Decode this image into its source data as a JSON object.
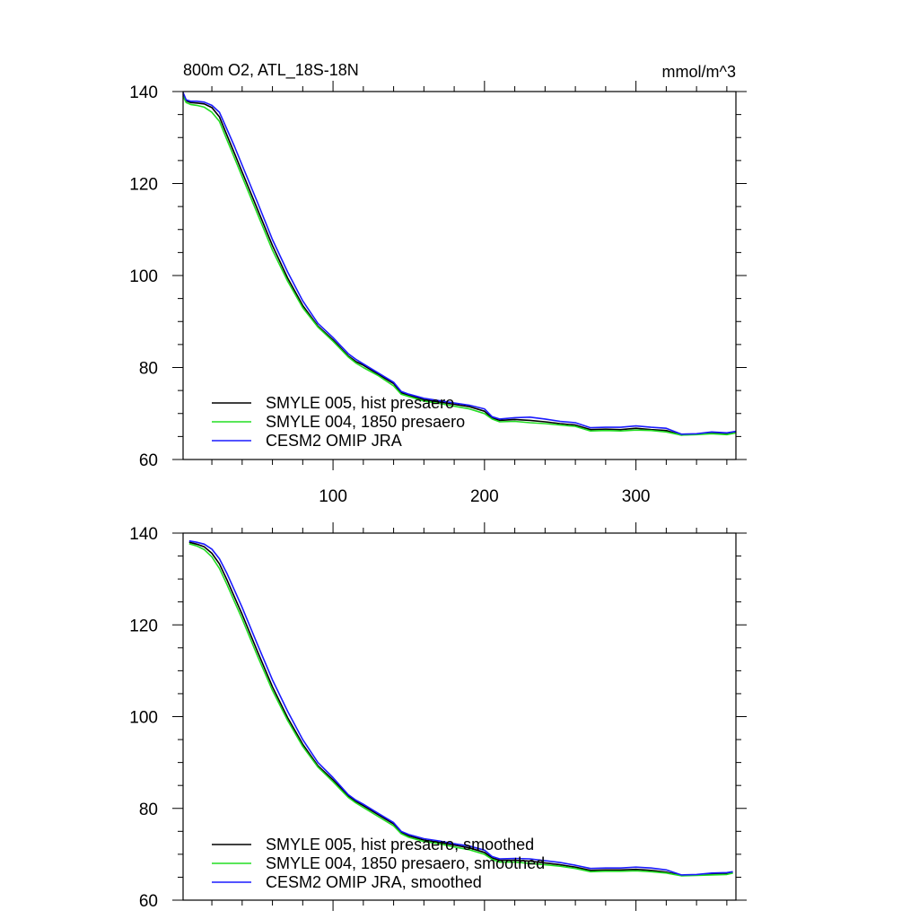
{
  "chart_data": [
    {
      "type": "line",
      "title": "800m O2, ATL_18S-18N",
      "units": "mmol/m^3",
      "xlabel": "",
      "ylabel": "",
      "xlim": [
        1,
        366
      ],
      "ylim": [
        60,
        140
      ],
      "x_ticks": [
        100,
        200,
        300
      ],
      "x_tick_labels": [
        "100",
        "200",
        "300"
      ],
      "y_ticks": [
        60,
        80,
        100,
        120,
        140
      ],
      "y_tick_labels": [
        "60",
        "80",
        "100",
        "120",
        "140"
      ],
      "grid": false,
      "legend_position": "bottom-left",
      "series": [
        {
          "name": "SMYLE 005, hist presaero",
          "color": "#000000",
          "x": [
            1,
            3,
            6,
            10,
            15,
            20,
            25,
            30,
            35,
            40,
            50,
            60,
            70,
            80,
            90,
            100,
            110,
            115,
            120,
            130,
            140,
            145,
            150,
            160,
            170,
            180,
            190,
            200,
            205,
            210,
            220,
            230,
            240,
            250,
            260,
            270,
            280,
            290,
            300,
            310,
            320,
            330,
            340,
            350,
            360,
            366
          ],
          "y": [
            139.5,
            138.0,
            137.6,
            137.5,
            137.3,
            136.5,
            134.5,
            130.5,
            126.5,
            122.5,
            114.5,
            106.5,
            99.5,
            93.5,
            89.0,
            86.0,
            82.5,
            81.3,
            80.5,
            78.5,
            76.5,
            74.5,
            74.0,
            73.0,
            72.5,
            72.0,
            71.5,
            70.5,
            69.0,
            68.5,
            68.7,
            68.5,
            68.2,
            67.8,
            67.5,
            66.5,
            66.6,
            66.5,
            66.8,
            66.5,
            66.3,
            65.3,
            65.5,
            65.8,
            65.6,
            66.0
          ]
        },
        {
          "name": "SMYLE 004, 1850 presaero",
          "color": "#22dd22",
          "x": [
            1,
            3,
            6,
            10,
            15,
            20,
            25,
            30,
            35,
            40,
            50,
            60,
            70,
            80,
            90,
            100,
            110,
            115,
            120,
            130,
            140,
            145,
            150,
            160,
            170,
            180,
            190,
            200,
            205,
            210,
            220,
            230,
            240,
            250,
            260,
            270,
            280,
            290,
            300,
            310,
            320,
            330,
            340,
            350,
            360,
            366
          ],
          "y": [
            139.0,
            137.6,
            137.2,
            137.0,
            136.6,
            135.5,
            133.5,
            129.5,
            125.5,
            121.5,
            113.5,
            105.5,
            98.8,
            93.0,
            88.8,
            85.7,
            82.3,
            81.0,
            80.0,
            78.2,
            76.0,
            74.2,
            73.7,
            72.7,
            72.2,
            71.6,
            71.0,
            70.0,
            68.8,
            68.2,
            68.3,
            68.0,
            67.8,
            67.5,
            67.2,
            66.2,
            66.3,
            66.2,
            66.4,
            66.3,
            66.0,
            65.3,
            65.4,
            65.6,
            65.4,
            65.8
          ]
        },
        {
          "name": "CESM2 OMIP JRA",
          "color": "#1a1aff",
          "x": [
            1,
            3,
            6,
            10,
            15,
            20,
            25,
            30,
            35,
            40,
            50,
            60,
            70,
            80,
            90,
            100,
            110,
            115,
            120,
            130,
            140,
            145,
            150,
            160,
            170,
            180,
            190,
            200,
            205,
            210,
            220,
            230,
            240,
            250,
            260,
            270,
            280,
            290,
            300,
            310,
            320,
            330,
            340,
            350,
            360,
            366
          ],
          "y": [
            139.8,
            138.2,
            137.9,
            137.9,
            137.7,
            137.0,
            135.5,
            131.8,
            128.0,
            124.0,
            116.0,
            107.8,
            100.8,
            94.5,
            89.6,
            86.5,
            83.0,
            81.8,
            80.8,
            78.8,
            76.8,
            74.8,
            74.2,
            73.3,
            72.8,
            72.3,
            71.8,
            71.0,
            69.3,
            68.8,
            69.1,
            69.2,
            68.8,
            68.3,
            68.0,
            66.9,
            67.0,
            67.0,
            67.3,
            67.0,
            66.8,
            65.5,
            65.6,
            66.0,
            65.8,
            66.1
          ]
        }
      ]
    },
    {
      "type": "line",
      "title": "",
      "xlabel": "",
      "ylabel": "",
      "xlim": [
        1,
        366
      ],
      "ylim": [
        60,
        140
      ],
      "x_ticks": [
        100,
        200,
        300
      ],
      "x_tick_labels": [],
      "y_ticks": [
        60,
        80,
        100,
        120,
        140
      ],
      "y_tick_labels": [
        "60",
        "80",
        "100",
        "120",
        "140"
      ],
      "grid": false,
      "legend_position": "bottom-left",
      "series": [
        {
          "name": "SMYLE 005, hist presaero, smoothed",
          "color": "#000000",
          "x": [
            5,
            10,
            15,
            20,
            25,
            30,
            35,
            40,
            50,
            60,
            70,
            80,
            90,
            100,
            110,
            115,
            120,
            130,
            140,
            145,
            150,
            160,
            170,
            180,
            190,
            200,
            205,
            210,
            220,
            230,
            240,
            250,
            260,
            270,
            280,
            290,
            300,
            310,
            320,
            330,
            340,
            350,
            360,
            364
          ],
          "y": [
            138.0,
            137.6,
            137.0,
            135.6,
            133.3,
            129.8,
            126.0,
            122.3,
            114.3,
            106.5,
            99.8,
            94.0,
            89.3,
            86.2,
            82.7,
            81.5,
            80.6,
            78.6,
            76.6,
            74.8,
            74.0,
            73.1,
            72.6,
            72.0,
            71.4,
            70.4,
            69.2,
            68.7,
            68.7,
            68.5,
            68.1,
            67.7,
            67.2,
            66.5,
            66.6,
            66.6,
            66.7,
            66.5,
            66.1,
            65.4,
            65.5,
            65.7,
            65.8,
            66.0
          ]
        },
        {
          "name": "SMYLE 004, 1850 presaero, smoothed",
          "color": "#22dd22",
          "x": [
            5,
            10,
            15,
            20,
            25,
            30,
            35,
            40,
            50,
            60,
            70,
            80,
            90,
            100,
            110,
            115,
            120,
            130,
            140,
            145,
            150,
            160,
            170,
            180,
            190,
            200,
            205,
            210,
            220,
            230,
            240,
            250,
            260,
            270,
            280,
            290,
            300,
            310,
            320,
            330,
            340,
            350,
            360,
            364
          ],
          "y": [
            137.7,
            137.2,
            136.4,
            134.8,
            132.3,
            128.8,
            125.0,
            121.3,
            113.3,
            105.7,
            99.2,
            93.5,
            89.0,
            85.8,
            82.4,
            81.2,
            80.2,
            78.2,
            76.2,
            74.5,
            73.7,
            72.8,
            72.3,
            71.6,
            71.0,
            70.0,
            68.9,
            68.3,
            68.3,
            68.0,
            67.7,
            67.4,
            66.9,
            66.2,
            66.3,
            66.3,
            66.4,
            66.2,
            65.9,
            65.3,
            65.4,
            65.5,
            65.6,
            65.9
          ]
        },
        {
          "name": "CESM2 OMIP JRA, smoothed",
          "color": "#1a1aff",
          "x": [
            5,
            10,
            15,
            20,
            25,
            30,
            35,
            40,
            50,
            60,
            70,
            80,
            90,
            100,
            110,
            115,
            120,
            130,
            140,
            145,
            150,
            160,
            170,
            180,
            190,
            200,
            205,
            210,
            220,
            230,
            240,
            250,
            260,
            270,
            280,
            290,
            300,
            310,
            320,
            330,
            340,
            350,
            360,
            364
          ],
          "y": [
            138.3,
            138.0,
            137.6,
            136.5,
            134.4,
            131.2,
            127.5,
            123.8,
            115.8,
            108.0,
            101.2,
            95.0,
            90.0,
            86.7,
            83.0,
            81.8,
            80.9,
            78.9,
            76.9,
            75.0,
            74.3,
            73.4,
            72.9,
            72.3,
            71.8,
            70.9,
            69.5,
            69.0,
            69.1,
            69.0,
            68.6,
            68.2,
            67.6,
            66.9,
            67.0,
            67.0,
            67.2,
            67.0,
            66.6,
            65.5,
            65.6,
            65.9,
            66.0,
            66.2
          ]
        }
      ]
    }
  ]
}
